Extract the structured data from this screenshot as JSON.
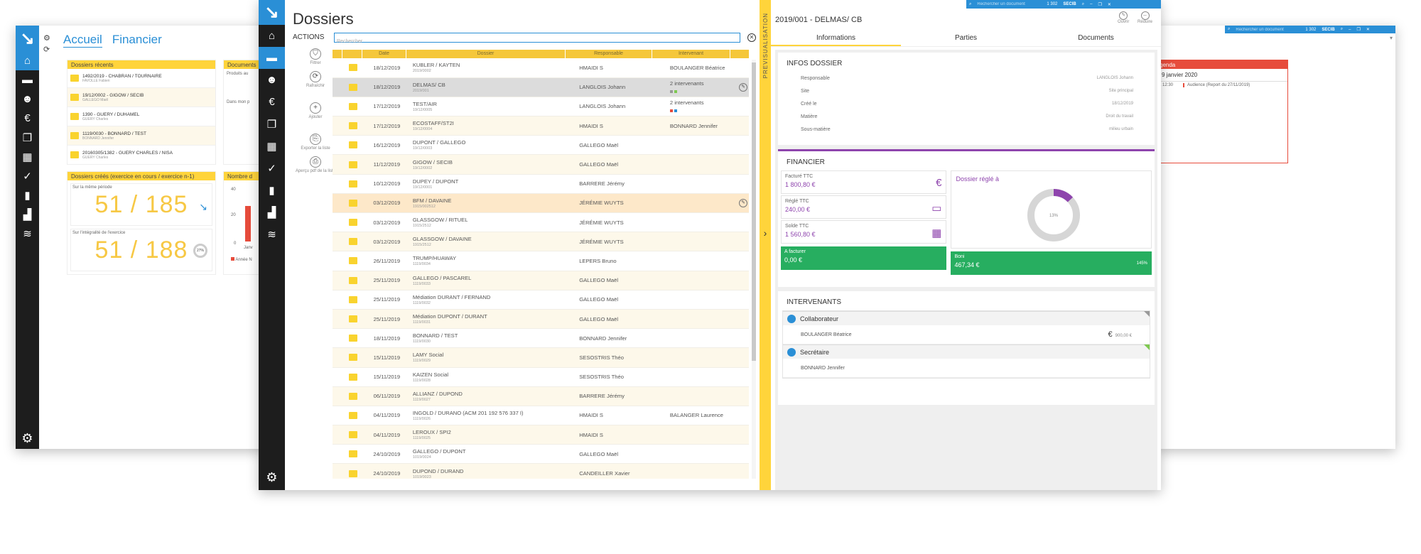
{
  "left_window": {
    "tabs": [
      "Accueil",
      "Financier"
    ],
    "recent_title": "Dossiers récents",
    "recent": [
      {
        "t": "1492/2019 - CHABRAN / TOURNAIRE",
        "s": "FAVOLLE Fabien"
      },
      {
        "t": "19/12/0002 - GIGOW / SECIB",
        "s": "GALLEGO Maël"
      },
      {
        "t": "1390 - GUERY / DUHAMEL",
        "s": "GUERY Charles"
      },
      {
        "t": "1119/0030 - BONNARD / TEST",
        "s": "BONNARD Jennifer"
      },
      {
        "t": "20160305/1382 - GUERY CHARLES / NISA",
        "s": "GUERY Charles"
      }
    ],
    "docs_title": "Documents",
    "docs_lines": [
      "Produits au",
      "Dans mon p"
    ],
    "created_title": "Dossiers créés (exercice en cours / exercice n-1)",
    "period_label": "Sur la même période",
    "period_value": "51 / 185",
    "all_label": "Sur l'intégralité de l'exercice",
    "all_value": "51 / 188",
    "all_pct": "27%",
    "chart_title": "Nombre d",
    "chart_ticks": [
      "40",
      "20",
      "0"
    ],
    "chart_xlabel": "Janv",
    "chart_legend": "Année N"
  },
  "right_window": {
    "search": "Rechercher un document",
    "stats": "1 302",
    "brand": "SECIB",
    "agenda_title": "genda",
    "agenda_date": "i 9 janvier 2020",
    "agenda_time": "à 12:30",
    "agenda_item": "Audience (Report du 27/11/2019)"
  },
  "dossiers": {
    "title": "Dossiers",
    "actions_label": "ACTIONS",
    "search_placeholder": "Rechercher",
    "actions": [
      {
        "label": "Filtrer",
        "icon": "filter-icon",
        "g": "⛉"
      },
      {
        "label": "Rafraîchir",
        "icon": "refresh-icon",
        "g": "⟳"
      },
      {
        "label": "Ajouter",
        "icon": "add-icon",
        "g": "+"
      },
      {
        "label": "Exporter la liste",
        "icon": "export-icon",
        "g": "⎘"
      },
      {
        "label": "Aperçu pdf de la liste",
        "icon": "print-icon",
        "g": "⎙"
      }
    ],
    "columns": [
      "Date",
      "Dossier",
      "Responsable",
      "Intervenant"
    ],
    "rows": [
      {
        "d": "18/12/2019",
        "n": "KUBLER / KAYTEN",
        "r": "2019/0002",
        "resp": "HMAIDI S",
        "i": "BOULANGER Béatrice"
      },
      {
        "d": "18/12/2019",
        "n": "DELMAS/ CB",
        "r": "2019/001",
        "resp": "LANGLOIS Johann",
        "i": "2 intervenants"
      },
      {
        "d": "17/12/2019",
        "n": "TEST/AIR",
        "r": "19/12/0005",
        "resp": "LANGLOIS Johann",
        "i": "2 intervenants"
      },
      {
        "d": "17/12/2019",
        "n": "ECOSTAFF/ST2I",
        "r": "19/12/0004",
        "resp": "HMAIDI S",
        "i": "BONNARD Jennifer"
      },
      {
        "d": "16/12/2019",
        "n": "DUPONT / GALLEGO",
        "r": "19/12/0003",
        "resp": "GALLEGO Maël",
        "i": ""
      },
      {
        "d": "11/12/2019",
        "n": "GIGOW / SECIB",
        "r": "19/12/0002",
        "resp": "GALLEGO Maël",
        "i": ""
      },
      {
        "d": "10/12/2019",
        "n": "DUPEY / DUPONT",
        "r": "19/12/0001",
        "resp": "BARRERE Jérémy",
        "i": ""
      },
      {
        "d": "03/12/2019",
        "n": "BFM / DAVAINE",
        "r": "1915/002512",
        "resp": "JÉRÉMIE WUYTS",
        "i": ""
      },
      {
        "d": "03/12/2019",
        "n": "GLASSGOW / RITUEL",
        "r": "1915/2512",
        "resp": "JÉRÉMIE WUYTS",
        "i": ""
      },
      {
        "d": "03/12/2019",
        "n": "GLASSGOW / DAVAINE",
        "r": "1915/2512",
        "resp": "JÉRÉMIE WUYTS",
        "i": ""
      },
      {
        "d": "26/11/2019",
        "n": "TRUMP/HUAWAY",
        "r": "1119/0034",
        "resp": "LEPERS Bruno",
        "i": ""
      },
      {
        "d": "25/11/2019",
        "n": "GALLEGO / PASCAREL",
        "r": "1119/0033",
        "resp": "GALLEGO Maël",
        "i": ""
      },
      {
        "d": "25/11/2019",
        "n": "Médiation DURANT / FERNAND",
        "r": "1119/0032",
        "resp": "GALLEGO Maël",
        "i": ""
      },
      {
        "d": "25/11/2019",
        "n": "Médiation DUPONT / DURANT",
        "r": "1119/0031",
        "resp": "GALLEGO Maël",
        "i": ""
      },
      {
        "d": "18/11/2019",
        "n": "BONNARD / TEST",
        "r": "1119/0030",
        "resp": "BONNARD Jennifer",
        "i": ""
      },
      {
        "d": "15/11/2019",
        "n": "LAMY Social",
        "r": "1119/0029",
        "resp": "SESOSTRIS Théo",
        "i": ""
      },
      {
        "d": "15/11/2019",
        "n": "KAIZEN Social",
        "r": "1119/0028",
        "resp": "SESOSTRIS Théo",
        "i": ""
      },
      {
        "d": "06/11/2019",
        "n": "ALLIANZ / DUPOND",
        "r": "1119/0027",
        "resp": "BARRERE Jérémy",
        "i": ""
      },
      {
        "d": "04/11/2019",
        "n": "INGOLD / DURANO   (ACM 201 192 576 337 I)",
        "r": "1119/0026",
        "resp": "HMAIDI S",
        "i": "BALANGER Laurence"
      },
      {
        "d": "04/11/2019",
        "n": "LEROUX / SPI2",
        "r": "1119/0025",
        "resp": "HMAIDI S",
        "i": ""
      },
      {
        "d": "24/10/2019",
        "n": "GALLEGO / DUPONT",
        "r": "1019/0024",
        "resp": "GALLEGO Maël",
        "i": ""
      },
      {
        "d": "24/10/2019",
        "n": "DUPOND / DURAND",
        "r": "1019/0023",
        "resp": "CANDEILLER Xavier",
        "i": ""
      }
    ]
  },
  "preview": {
    "vertical_label": "PREVISUALISATION",
    "title": "2019/001 - DELMAS/ CB",
    "open": "Ouvrir",
    "reduce": "Réduire",
    "tabs": [
      "Informations",
      "Parties",
      "Documents"
    ],
    "infos_title": "INFOS DOSSIER",
    "infos": [
      {
        "k": "Responsable",
        "v": "LANGLOIS Johann"
      },
      {
        "k": "Site",
        "v": "Site principal"
      },
      {
        "k": "Créé le",
        "v": "18/12/2019"
      },
      {
        "k": "Matière",
        "v": "Droit du travail"
      },
      {
        "k": "Sous-matière",
        "v": "milieu urbain"
      }
    ],
    "fin_title": "FINANCIER",
    "fin": [
      {
        "k": "Facturé TTC",
        "v": "1 800,80 €"
      },
      {
        "k": "Réglé TTC",
        "v": "240,00 €"
      },
      {
        "k": "Solde TTC",
        "v": "1 560,80 €"
      }
    ],
    "regle_label": "Dossier réglé à",
    "regle_pct": "13%",
    "regle_value": 0.13,
    "afacturer": {
      "k": "A facturer",
      "v": "0,00 €"
    },
    "boni": {
      "k": "Boni",
      "v": "467,34 €",
      "pct": "145%"
    },
    "int_title": "INTERVENANTS",
    "groups": [
      {
        "name": "Collaborateur",
        "person": "BOULANGER Béatrice",
        "amount": "900,00 €"
      },
      {
        "name": "Secrétaire",
        "person": "BONNARD Jennifer",
        "amount": ""
      }
    ],
    "colors": {
      "accent": "#ffd43b",
      "purple": "#8e44ad",
      "green": "#27ae60",
      "blue": "#2a8fd6"
    }
  }
}
